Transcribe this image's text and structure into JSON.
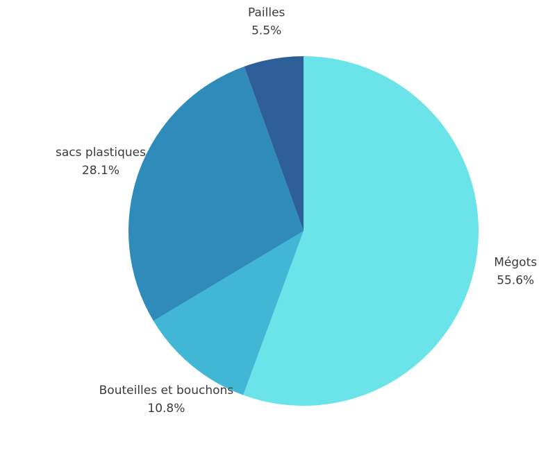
{
  "chart_data": {
    "type": "pie",
    "title": "",
    "start": "top",
    "direction": "clockwise",
    "slices": [
      {
        "label": "Mégots",
        "value": 55.6,
        "display": "55.6%",
        "color": "#6ae4e8"
      },
      {
        "label": "Bouteilles et bouchons",
        "value": 10.8,
        "display": "10.8%",
        "color": "#42b6d5"
      },
      {
        "label": "sacs plastiques",
        "value": 28.1,
        "display": "28.1%",
        "color": "#2e8bba"
      },
      {
        "label": "Pailles",
        "value": 5.5,
        "display": "5.5%",
        "color": "#2e5f98"
      }
    ]
  }
}
